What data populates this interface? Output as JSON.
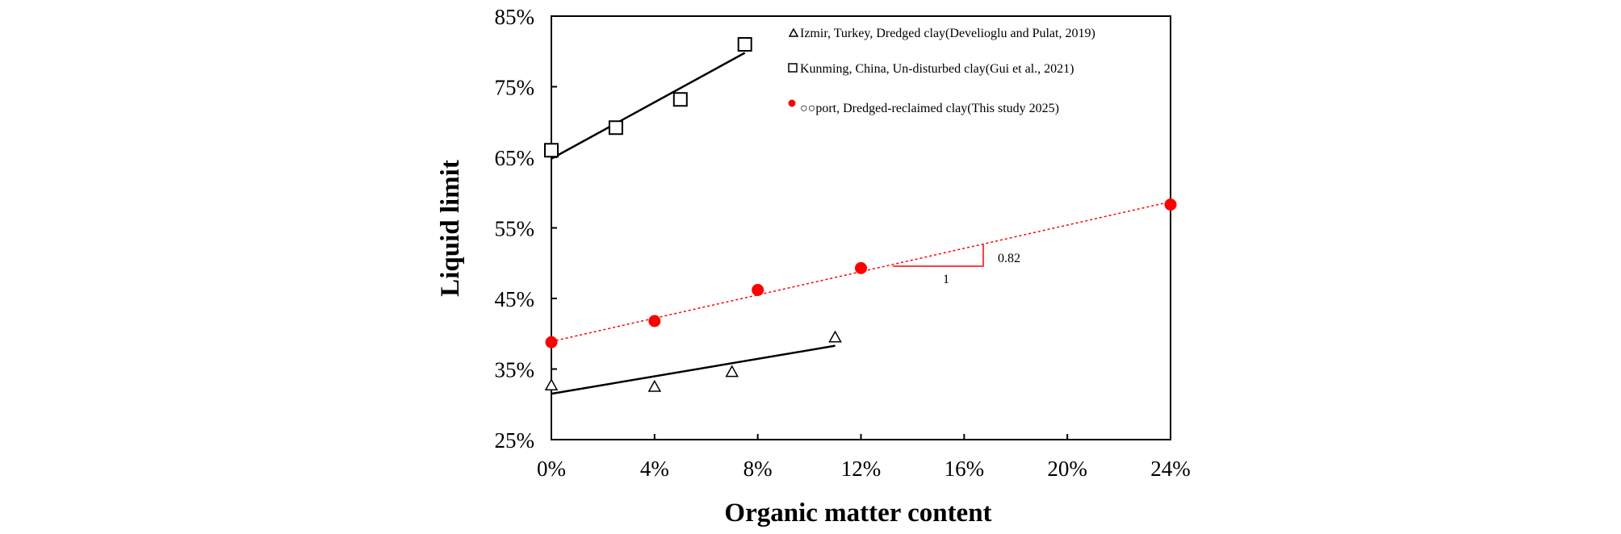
{
  "chart_data": {
    "type": "scatter",
    "xlabel": "Organic matter content",
    "ylabel": "Liquid limit",
    "xlim": [
      0,
      24
    ],
    "ylim": [
      25,
      85
    ],
    "x_ticks": [
      "0%",
      "4%",
      "8%",
      "12%",
      "16%",
      "20%",
      "24%"
    ],
    "y_ticks": [
      "25%",
      "35%",
      "45%",
      "55%",
      "65%",
      "75%",
      "85%"
    ],
    "legend_position": "top-right",
    "series": [
      {
        "name": "Izmir, Turkey, Dredged clay(Develioglu and Pulat, 2019)",
        "marker": "open-triangle",
        "color": "#000000",
        "x": [
          0,
          4,
          7,
          11
        ],
        "y": [
          32.7,
          32.5,
          34.6,
          39.5
        ],
        "fit": {
          "x": [
            0,
            11
          ],
          "y": [
            31.5,
            38.3
          ],
          "style": "solid"
        }
      },
      {
        "name": "Kunming, China, Un-disturbed clay(Gui et al., 2021)",
        "marker": "open-square",
        "color": "#000000",
        "x": [
          0,
          2.5,
          5,
          7.5
        ],
        "y": [
          66,
          69.2,
          73.2,
          81
        ],
        "fit": {
          "x": [
            0,
            7.5
          ],
          "y": [
            64.8,
            79.8
          ],
          "style": "solid"
        }
      },
      {
        "name": "○○port, Dredged-reclaimed clay(This study 2025)",
        "marker": "filled-circle",
        "color": "#ff0000",
        "x": [
          0,
          4,
          8,
          12,
          24
        ],
        "y": [
          38.8,
          41.8,
          46.2,
          49.3,
          58.3
        ],
        "fit": {
          "x": [
            0,
            24
          ],
          "y": [
            38.9,
            58.7
          ],
          "style": "dotted"
        }
      }
    ],
    "annotations": [
      {
        "text": "0.82",
        "role": "slope-rise"
      },
      {
        "text": "1",
        "role": "slope-run"
      }
    ]
  }
}
